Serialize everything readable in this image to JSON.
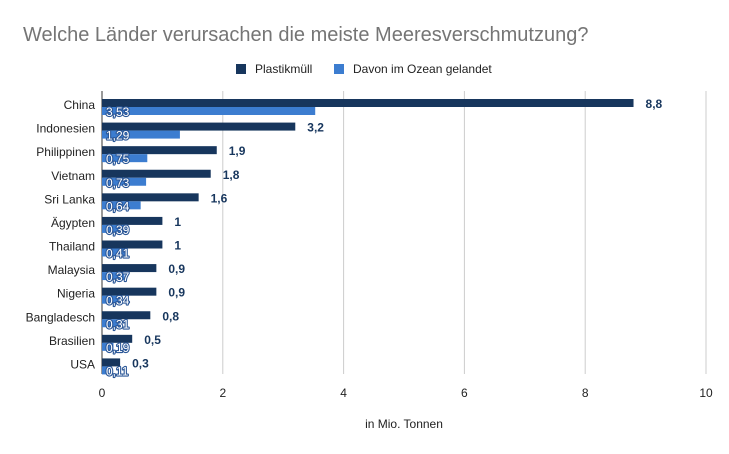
{
  "chart_data": {
    "type": "bar",
    "orientation": "horizontal",
    "title": "Welche Länder verursachen die meiste Meeresverschmutzung?",
    "xlabel": "in Mio. Tonnen",
    "ylabel": "",
    "xlim": [
      0,
      10
    ],
    "xticks": [
      "0",
      "2",
      "4",
      "6",
      "8",
      "10"
    ],
    "grid": true,
    "legend_position": "top",
    "categories": [
      "China",
      "Indonesien",
      "Philippinen",
      "Vietnam",
      "Sri Lanka",
      "Ägypten",
      "Thailand",
      "Malaysia",
      "Nigeria",
      "Bangladesch",
      "Brasilien",
      "USA"
    ],
    "series": [
      {
        "name": "Plastikmüll",
        "color": "#17365d",
        "values": [
          8.8,
          3.2,
          1.9,
          1.8,
          1.6,
          1,
          1,
          0.9,
          0.9,
          0.8,
          0.5,
          0.3
        ],
        "labels": [
          "8,8",
          "3,2",
          "1,9",
          "1,8",
          "1,6",
          "1",
          "1",
          "0,9",
          "0,9",
          "0,8",
          "0,5",
          "0,3"
        ]
      },
      {
        "name": "Davon im Ozean gelandet",
        "color": "#3c7dd0",
        "values": [
          3.53,
          1.29,
          0.75,
          0.73,
          0.64,
          0.39,
          0.41,
          0.37,
          0.34,
          0.31,
          0.19,
          0.11
        ],
        "labels": [
          "3,53",
          "1,29",
          "0,75",
          "0,73",
          "0,64",
          "0,39",
          "0,41",
          "0,37",
          "0,34",
          "0,31",
          "0,19",
          "0,11"
        ]
      }
    ]
  }
}
